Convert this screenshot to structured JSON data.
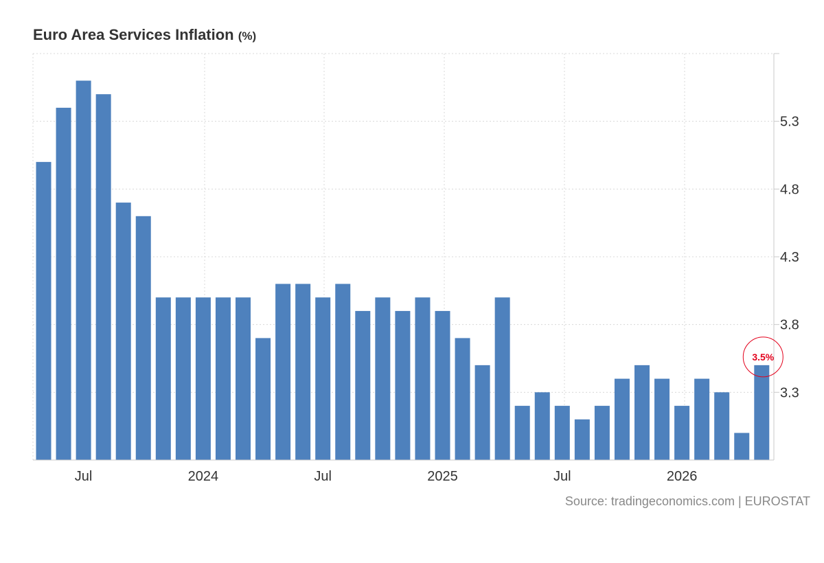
{
  "header": {
    "title": "Euro Area Services Inflation",
    "unit": "(%)"
  },
  "source": "Source: tradingeconomics.com | EUROSTAT",
  "colors": {
    "bar": "#4e81bd",
    "annotation": "#e3001b",
    "grid": "#d8d8d8",
    "axis": "#c8c8c8",
    "tick_text": "#333333"
  },
  "chart_data": {
    "type": "bar",
    "title": "Euro Area Services Inflation (%)",
    "xlabel": "",
    "ylabel": "",
    "grid": true,
    "y_axis_side": "right",
    "ylim": [
      2.8,
      5.8
    ],
    "yticks": [
      3.3,
      3.8,
      4.3,
      4.8,
      5.3
    ],
    "ytick_labels": [
      "3.3",
      "3.8",
      "4.3",
      "4.8",
      "5.3"
    ],
    "categories": [
      "2023-05",
      "2023-06",
      "2023-07",
      "2023-08",
      "2023-09",
      "2023-10",
      "2023-11",
      "2023-12",
      "2024-01",
      "2024-02",
      "2024-03",
      "2024-04",
      "2024-05",
      "2024-06",
      "2024-07",
      "2024-08",
      "2024-09",
      "2024-10",
      "2024-11",
      "2024-12",
      "2025-01",
      "2025-02",
      "2025-03",
      "2025-04",
      "2025-05",
      "2025-06",
      "2025-07",
      "2025-08",
      "2025-09",
      "2025-10",
      "2025-11",
      "2025-12",
      "2026-01",
      "2026-02",
      "2026-03",
      "2026-04",
      "2026-05"
    ],
    "values": [
      5.0,
      5.4,
      5.6,
      5.5,
      4.7,
      4.6,
      4.0,
      4.0,
      4.0,
      4.0,
      4.0,
      3.7,
      4.1,
      4.1,
      4.0,
      4.1,
      3.9,
      4.0,
      3.9,
      4.0,
      3.9,
      3.7,
      3.5,
      4.0,
      3.2,
      3.3,
      3.2,
      3.1,
      3.2,
      3.4,
      3.5,
      3.4,
      3.2,
      3.4,
      3.3,
      3.0,
      3.5
    ],
    "x_tick_labels": [
      {
        "label": "Jul",
        "index": 2
      },
      {
        "label": "2024",
        "index": 8
      },
      {
        "label": "Jul",
        "index": 14
      },
      {
        "label": "2025",
        "index": 20
      },
      {
        "label": "Jul",
        "index": 26
      },
      {
        "label": "2026",
        "index": 32
      }
    ],
    "annotation": {
      "text": "3.5%",
      "index": 36
    }
  }
}
